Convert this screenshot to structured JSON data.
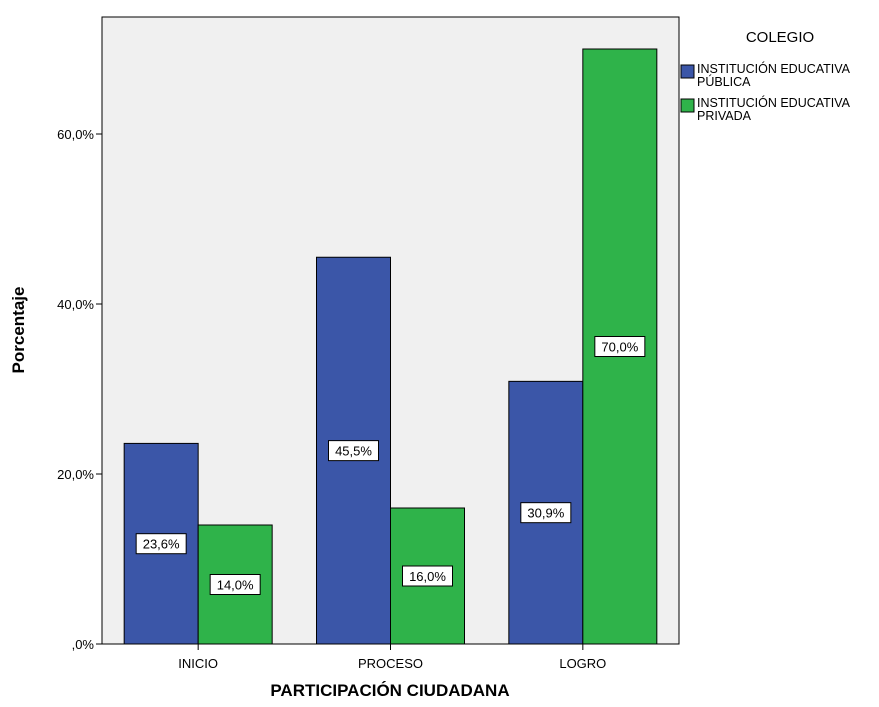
{
  "chart_data": {
    "type": "bar",
    "xlabel": "PARTICIPACIÓN CIUDADANA",
    "ylabel": "Porcentaje",
    "categories": [
      "INICIO",
      "PROCESO",
      "LOGRO"
    ],
    "ylim": [
      0,
      70
    ],
    "yticks": [
      0,
      20,
      40,
      60
    ],
    "ytick_labels": [
      ",0%",
      "20,0%",
      "40,0%",
      "60,0%"
    ],
    "grid": false,
    "legend": {
      "title": "COLEGIO",
      "placement": "top-right, outside plot"
    },
    "series": [
      {
        "name": "INSTITUCIÓN EDUCATIVA PÚBLICA",
        "name_lines": [
          "INSTITUCIÓN EDUCATIVA",
          "PÚBLICA"
        ],
        "color": "#3b56a8",
        "values": [
          23.6,
          45.5,
          30.9
        ],
        "labels": [
          "23,6%",
          "45,5%",
          "30,9%"
        ]
      },
      {
        "name": "INSTITUCIÓN EDUCATIVA PRIVADA",
        "name_lines": [
          "INSTITUCIÓN EDUCATIVA",
          "PRIVADA"
        ],
        "color": "#2fb34a",
        "values": [
          14.0,
          16.0,
          70.0
        ],
        "labels": [
          "14,0%",
          "16,0%",
          "70,0%"
        ]
      }
    ],
    "plot_background": "#f0f0f0"
  }
}
